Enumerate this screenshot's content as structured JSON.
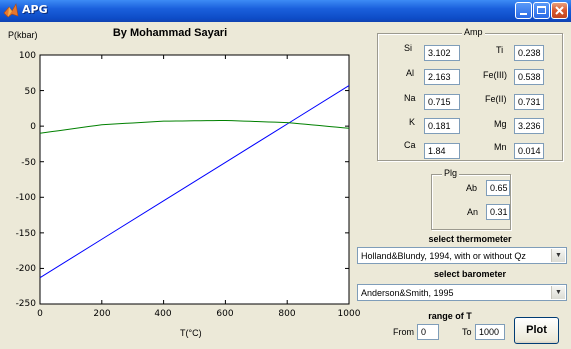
{
  "window": {
    "title": "APG",
    "minimize_icon": "minimize-icon",
    "maximize_icon": "maximize-icon",
    "close_icon": "close-icon"
  },
  "plot": {
    "title": "By Mohammad Sayari",
    "ylabel": "P(kbar)",
    "xlabel": "T(°C)",
    "yticks": [
      "100",
      "50",
      "0",
      "-50",
      "-100",
      "-150",
      "-200",
      "-250"
    ],
    "xticks": [
      "0",
      "200",
      "400",
      "600",
      "800",
      "1000"
    ]
  },
  "chart_data": {
    "type": "line",
    "title": "By Mohammad Sayari",
    "xlabel": "T(°C)",
    "ylabel": "P(kbar)",
    "xlim": [
      0,
      1000
    ],
    "ylim": [
      -250,
      100
    ],
    "grid": false,
    "series": [
      {
        "color": "#0000ff",
        "x": [
          0,
          200,
          400,
          600,
          800,
          1000
        ],
        "y": [
          -213,
          -159,
          -105,
          -51,
          3,
          57
        ]
      },
      {
        "color": "#008000",
        "x": [
          0,
          200,
          400,
          600,
          800,
          1000
        ],
        "y": [
          -10,
          2,
          7,
          8,
          5,
          -3
        ]
      }
    ]
  },
  "amp": {
    "title": "Amp",
    "rows": [
      {
        "l_label": "Si",
        "l_value": "3.102",
        "r_label": "Ti",
        "r_value": "0.238"
      },
      {
        "l_label": "Al",
        "l_value": "2.163",
        "r_label": "Fe(III)",
        "r_value": "0.538"
      },
      {
        "l_label": "Na",
        "l_value": "0.715",
        "r_label": "Fe(II)",
        "r_value": "0.731"
      },
      {
        "l_label": "K",
        "l_value": "0.181",
        "r_label": "Mg",
        "r_value": "3.236"
      },
      {
        "l_label": "Ca",
        "l_value": "1.84",
        "r_label": "Mn",
        "r_value": "0.014"
      }
    ]
  },
  "plg": {
    "title": "Plg",
    "ab_label": "Ab",
    "ab_value": "0.65",
    "an_label": "An",
    "an_value": "0.31"
  },
  "thermometer": {
    "heading": "select thermometer",
    "selected": "Holland&Blundy, 1994, with or without Qz"
  },
  "barometer": {
    "heading": "select barometer",
    "selected": "Anderson&Smith, 1995"
  },
  "range": {
    "heading": "range of T",
    "from_label": "From",
    "from_value": "0",
    "to_label": "To",
    "to_value": "1000"
  },
  "plot_button": {
    "label": "Plot"
  },
  "colors": {
    "titlebar": "#0d4bc6",
    "line1": "#0000ff",
    "line2": "#008000",
    "window_bg": "#ece9d8"
  }
}
